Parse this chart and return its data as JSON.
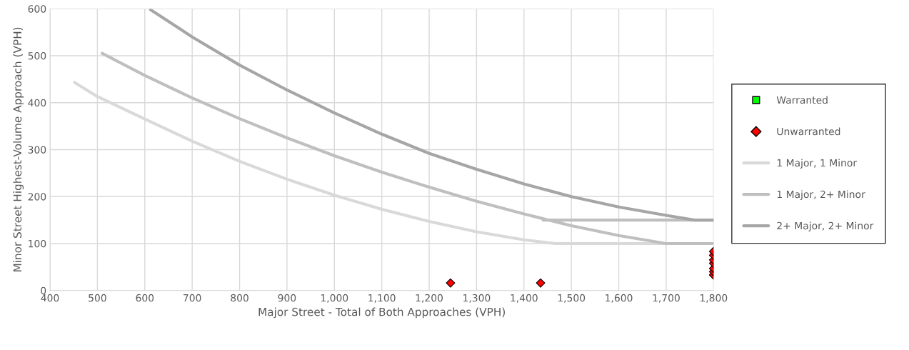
{
  "chart_data": {
    "type": "line",
    "xlabel": "Major Street - Total of Both Approaches (VPH)",
    "ylabel": "Minor Street Highest-Volume Approach (VPH)",
    "xlim": [
      400,
      1800
    ],
    "ylim": [
      0,
      600
    ],
    "xticks": [
      400,
      500,
      600,
      700,
      800,
      900,
      {
        "value": 1000,
        "label": "1,000"
      },
      {
        "value": 1100,
        "label": "1,100"
      },
      {
        "value": 1200,
        "label": "1,200"
      },
      {
        "value": 1300,
        "label": "1,300"
      },
      {
        "value": 1400,
        "label": "1,400"
      },
      {
        "value": 1500,
        "label": "1,500"
      },
      {
        "value": 1600,
        "label": "1,600"
      },
      {
        "value": 1700,
        "label": "1,700"
      },
      {
        "value": 1800,
        "label": "1,800"
      }
    ],
    "yticks": [
      0,
      100,
      200,
      300,
      400,
      500,
      600
    ],
    "grid": true,
    "legend": "right",
    "series": [
      {
        "name": "Warranted",
        "type": "scatter",
        "marker": "square",
        "color": "#00ff00"
      },
      {
        "name": "Unwarranted",
        "type": "scatter",
        "marker": "diamond",
        "color": "#ff0000",
        "x": [
          1245,
          1435,
          1800,
          1800,
          1800,
          1800,
          1800,
          1800,
          1800
        ],
        "values": [
          16,
          16,
          33,
          40,
          47,
          58,
          65,
          75,
          83
        ]
      },
      {
        "name": "1 Major, 1 Minor",
        "marker": "none",
        "color": "#d9d9d9",
        "x": [
          452,
          500,
          600,
          700,
          800,
          900,
          1000,
          1100,
          1200,
          1300,
          1400,
          1465,
          1800
        ],
        "values": [
          443,
          413,
          365,
          318,
          275,
          237,
          203,
          173,
          147,
          125,
          108,
          100,
          100
        ]
      },
      {
        "name": "1 Major, 2+ Minor",
        "marker": "none",
        "color": "#bfbfbf",
        "x": [
          510,
          600,
          700,
          800,
          900,
          1000,
          1100,
          1200,
          1300,
          1400,
          1500,
          1600,
          1700,
          1800,
          null,
          1440,
          1800
        ],
        "values": [
          505,
          458,
          410,
          366,
          325,
          287,
          252,
          220,
          190,
          163,
          138,
          117,
          100,
          100,
          null,
          150,
          150
        ]
      },
      {
        "name": "2+ Major, 2+ Minor",
        "marker": "none",
        "color": "#a6a6a6",
        "x": [
          612,
          700,
          800,
          900,
          1000,
          1100,
          1200,
          1300,
          1400,
          1500,
          1600,
          1700,
          1760,
          1800
        ],
        "values": [
          598,
          540,
          480,
          427,
          378,
          333,
          292,
          258,
          227,
          200,
          178,
          160,
          150,
          150
        ]
      }
    ]
  }
}
